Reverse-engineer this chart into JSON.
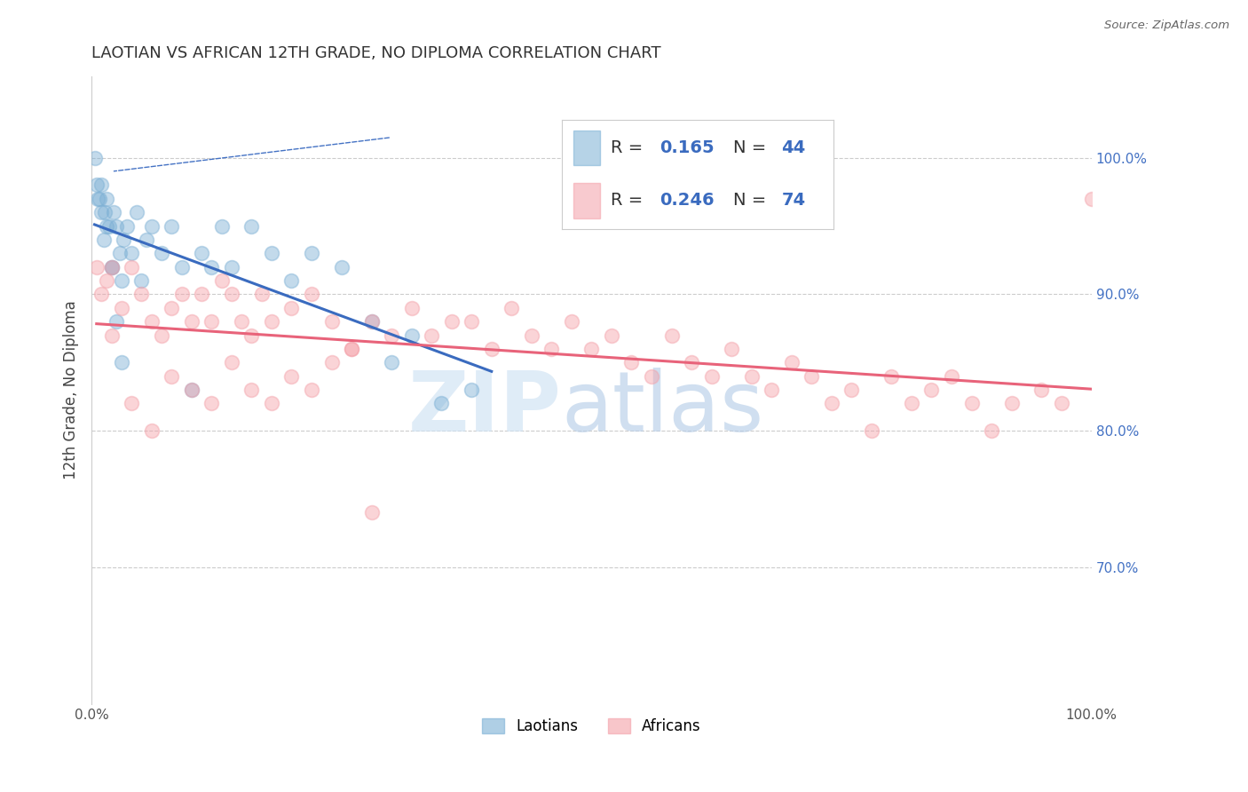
{
  "title": "LAOTIAN VS AFRICAN 12TH GRADE, NO DIPLOMA CORRELATION CHART",
  "source": "Source: ZipAtlas.com",
  "ylabel": "12th Grade, No Diploma",
  "laotian_color": "#7bafd4",
  "african_color": "#f4a0a8",
  "laotian_line_color": "#3a6bbf",
  "african_line_color": "#e8637a",
  "laotian_R": "0.165",
  "laotian_N": "44",
  "african_R": "0.246",
  "african_N": "74",
  "R_N_color": "#3a6bbf",
  "legend_labels": [
    "Laotians",
    "Africans"
  ],
  "laotian_x": [
    0.5,
    1.0,
    1.2,
    1.5,
    1.8,
    2.0,
    2.2,
    2.5,
    2.8,
    3.0,
    3.2,
    3.5,
    4.0,
    4.5,
    5.0,
    5.5,
    6.0,
    7.0,
    8.0,
    9.0,
    10.0,
    11.0,
    12.0,
    13.0,
    14.0,
    16.0,
    18.0,
    20.0,
    22.0,
    25.0,
    28.0,
    30.0,
    32.0,
    35.0,
    38.0,
    0.3,
    0.6,
    0.8,
    1.0,
    1.3,
    1.5,
    2.0,
    2.5,
    3.0
  ],
  "laotian_y": [
    98,
    96,
    94,
    97,
    95,
    92,
    96,
    95,
    93,
    91,
    94,
    95,
    93,
    96,
    91,
    94,
    95,
    93,
    95,
    92,
    83,
    93,
    92,
    95,
    92,
    95,
    93,
    91,
    93,
    92,
    88,
    85,
    87,
    82,
    83,
    100,
    97,
    97,
    98,
    96,
    95,
    92,
    88,
    85
  ],
  "african_x": [
    0.5,
    1.0,
    1.5,
    2.0,
    3.0,
    4.0,
    5.0,
    6.0,
    7.0,
    8.0,
    9.0,
    10.0,
    11.0,
    12.0,
    13.0,
    14.0,
    15.0,
    16.0,
    17.0,
    18.0,
    20.0,
    22.0,
    24.0,
    26.0,
    28.0,
    30.0,
    32.0,
    34.0,
    36.0,
    38.0,
    40.0,
    42.0,
    44.0,
    46.0,
    48.0,
    50.0,
    52.0,
    54.0,
    56.0,
    58.0,
    60.0,
    62.0,
    64.0,
    66.0,
    68.0,
    70.0,
    72.0,
    74.0,
    76.0,
    78.0,
    80.0,
    82.0,
    84.0,
    86.0,
    88.0,
    90.0,
    92.0,
    95.0,
    97.0,
    100.0,
    2.0,
    4.0,
    6.0,
    8.0,
    10.0,
    12.0,
    14.0,
    16.0,
    18.0,
    20.0,
    22.0,
    24.0,
    26.0,
    28.0
  ],
  "african_y": [
    92,
    90,
    91,
    92,
    89,
    92,
    90,
    88,
    87,
    89,
    90,
    88,
    90,
    88,
    91,
    90,
    88,
    87,
    90,
    88,
    89,
    90,
    88,
    86,
    88,
    87,
    89,
    87,
    88,
    88,
    86,
    89,
    87,
    86,
    88,
    86,
    87,
    85,
    84,
    87,
    85,
    84,
    86,
    84,
    83,
    85,
    84,
    82,
    83,
    80,
    84,
    82,
    83,
    84,
    82,
    80,
    82,
    83,
    82,
    97,
    87,
    82,
    80,
    84,
    83,
    82,
    85,
    83,
    82,
    84,
    83,
    85,
    86,
    74
  ],
  "xlim": [
    0,
    100
  ],
  "ylim": [
    60,
    106
  ],
  "yticks": [
    70,
    80,
    90,
    100
  ],
  "ytick_labels": [
    "70.0%",
    "80.0%",
    "90.0%",
    "100.0%"
  ]
}
